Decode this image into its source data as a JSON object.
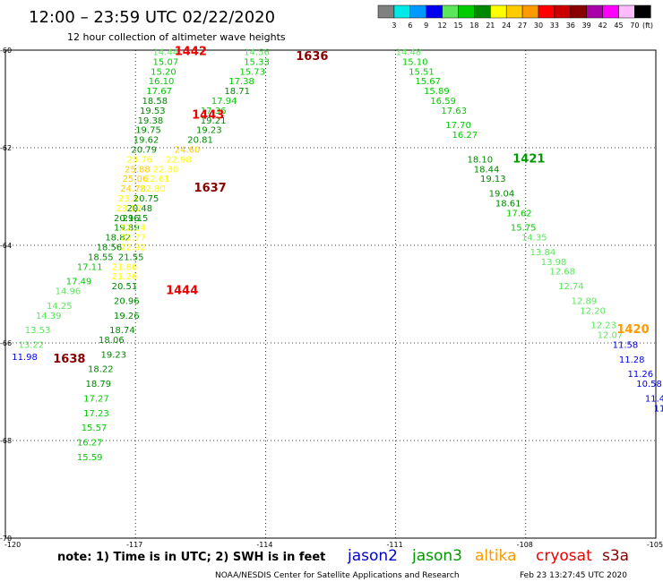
{
  "header": {
    "title": "12:00 – 23:59 UTC 02/22/2020",
    "subtitle": "12 hour collection of altimeter wave heights"
  },
  "colorbar": {
    "colors": [
      "#808080",
      "#00e8e8",
      "#0099ff",
      "#0000ee",
      "#5ce65c",
      "#00cc00",
      "#008800",
      "#ffff00",
      "#ffcc00",
      "#ff9900",
      "#ff0000",
      "#cc0000",
      "#880000",
      "#aa00aa",
      "#ff00ff",
      "#ffbbff",
      "#000000"
    ],
    "labels": [
      "3",
      "6",
      "9",
      "12",
      "15",
      "18",
      "21",
      "24",
      "27",
      "30",
      "33",
      "36",
      "39",
      "42",
      "45",
      "70"
    ],
    "unit": "(ft)"
  },
  "footer": {
    "note": "note:  1) Time is in UTC;  2) SWH is in feet",
    "credit": "NOAA/NESDIS Center for Satellite Applications and Research",
    "timestamp": "Feb 23 13:27:45 UTC 2020"
  },
  "legend": [
    {
      "name": "jason2",
      "color": "#0000cc"
    },
    {
      "name": "jason3",
      "color": "#009900"
    },
    {
      "name": "altika",
      "color": "#ff9900"
    },
    {
      "name": "cryosat",
      "color": "#ee0000"
    },
    {
      "name": "s3a",
      "color": "#880000"
    }
  ],
  "chart_data": {
    "type": "scatter",
    "title": "12:00 – 23:59 UTC 02/22/2020",
    "subtitle": "12 hour collection of altimeter wave heights",
    "xlabel": "",
    "ylabel": "",
    "xlim": [
      -120,
      -105
    ],
    "ylim": [
      -70,
      -60
    ],
    "x_ticks": [
      "-120",
      "-117",
      "-114",
      "-111",
      "-108",
      "-105"
    ],
    "y_ticks": [
      "-60",
      "-62",
      "-64",
      "-66",
      "-68",
      "-70"
    ],
    "grid": true,
    "unit": "ft",
    "series": [
      {
        "name": "cryosat",
        "time_label": "1442",
        "label_at": [
          -116.1,
          -60.1
        ],
        "points": [
          [
            -116.6,
            -60.1,
            "14.44",
            "#5ce65c"
          ],
          [
            -116.6,
            -60.3,
            "15.07",
            "#00cc00"
          ],
          [
            -116.65,
            -60.5,
            "15.20",
            "#00cc00"
          ],
          [
            -116.7,
            -60.7,
            "16.10",
            "#00cc00"
          ],
          [
            -116.75,
            -60.9,
            "17.67",
            "#00cc00"
          ],
          [
            -116.85,
            -61.1,
            "18.58",
            "#008800"
          ],
          [
            -116.9,
            -61.3,
            "19.53",
            "#008800"
          ],
          [
            -116.95,
            -61.5,
            "19.38",
            "#008800"
          ],
          [
            -117.0,
            -61.7,
            "19.75",
            "#008800"
          ],
          [
            -117.05,
            -61.9,
            "19.62",
            "#008800"
          ],
          [
            -117.1,
            -62.1,
            "20.79",
            "#008800"
          ],
          [
            -117.2,
            -62.3,
            "23.76",
            "#ffff00"
          ],
          [
            -117.25,
            -62.5,
            "25.88",
            "#ffcc00"
          ],
          [
            -117.3,
            -62.7,
            "25.06",
            "#ffcc00"
          ],
          [
            -117.35,
            -62.9,
            "24.78",
            "#ffcc00"
          ],
          [
            -117.4,
            -63.1,
            "23.3",
            "#ffff00"
          ],
          [
            -117.45,
            -63.3,
            "23.12",
            "#ffff00"
          ],
          [
            -117.5,
            -63.5,
            "20.96",
            "#008800"
          ],
          [
            -117.5,
            -63.7,
            "19.89",
            "#008800"
          ],
          [
            -117.7,
            -63.9,
            "18.82",
            "#008800"
          ],
          [
            -117.9,
            -64.1,
            "18.56",
            "#008800"
          ],
          [
            -118.1,
            -64.3,
            "18.55",
            "#008800"
          ],
          [
            -118.35,
            -64.5,
            "17.11",
            "#00cc00"
          ],
          [
            -118.6,
            -64.8,
            "17.49",
            "#00cc00"
          ],
          [
            -118.85,
            -65.0,
            "14.96",
            "#5ce65c"
          ],
          [
            -119.05,
            -65.3,
            "14.25",
            "#5ce65c"
          ],
          [
            -119.3,
            -65.5,
            "14.39",
            "#5ce65c"
          ],
          [
            -119.55,
            -65.8,
            "13.53",
            "#5ce65c"
          ],
          [
            -119.7,
            -66.1,
            "13.22",
            "#5ce65c"
          ],
          [
            -119.85,
            -66.35,
            "11.98",
            "#0000ee"
          ]
        ]
      },
      {
        "name": "s3a",
        "time_label": "1636",
        "label_at": [
          -113.3,
          -60.2
        ],
        "points": [
          [
            -114.5,
            -60.1,
            "14.56",
            "#5ce65c"
          ],
          [
            -114.5,
            -60.3,
            "15.33",
            "#00cc00"
          ],
          [
            -114.6,
            -60.5,
            "15.73",
            "#00cc00"
          ],
          [
            -114.85,
            -60.7,
            "17.38",
            "#00cc00"
          ],
          [
            -114.95,
            -60.9,
            "18.71",
            "#008800"
          ],
          [
            -115.25,
            -61.1,
            "17.94",
            "#00cc00"
          ],
          [
            -115.5,
            -61.3,
            "17.36",
            "#00cc00"
          ],
          [
            -115.5,
            -61.5,
            "19.21",
            "#008800"
          ],
          [
            -115.6,
            -61.7,
            "19.23",
            "#008800"
          ],
          [
            -115.8,
            -61.9,
            "20.81",
            "#008800"
          ],
          [
            -116.1,
            -62.1,
            "24.60",
            "#ffcc00"
          ],
          [
            -116.3,
            -62.3,
            "22.98",
            "#ffff00"
          ],
          [
            -116.6,
            -62.5,
            "22.30",
            "#ffff00"
          ],
          [
            -116.8,
            -62.7,
            "22.61",
            "#ffff00"
          ],
          [
            -116.9,
            -62.9,
            "22.80",
            "#ffff00"
          ],
          [
            -117.05,
            -63.1,
            "20.75",
            "#008800"
          ],
          [
            -117.2,
            -63.3,
            "20.48",
            "#008800"
          ],
          [
            -117.3,
            -63.5,
            "21.15",
            "#008800"
          ],
          [
            -117.35,
            -63.7,
            "22.14",
            "#ffff00"
          ],
          [
            -117.35,
            -63.9,
            "22.77",
            "#ffff00"
          ],
          [
            -117.35,
            -64.1,
            "22.92",
            "#ffff00"
          ],
          [
            -117.4,
            -64.3,
            "21.55",
            "#008800"
          ],
          [
            -117.55,
            -64.5,
            "21.86",
            "#ffff00"
          ],
          [
            -117.55,
            -64.7,
            "21.26",
            "#ffff00"
          ],
          [
            -117.55,
            -64.9,
            "20.51",
            "#008800"
          ],
          [
            -117.5,
            -65.2,
            "20.96",
            "#008800"
          ],
          [
            -117.5,
            -65.5,
            "19.26",
            "#008800"
          ],
          [
            -117.6,
            -65.8,
            "18.74",
            "#008800"
          ],
          [
            -117.85,
            -66.0,
            "18.06",
            "#008800"
          ],
          [
            -117.8,
            -66.3,
            "19.23",
            "#008800"
          ],
          [
            -118.1,
            -66.6,
            "18.22",
            "#008800"
          ],
          [
            -118.15,
            -66.9,
            "18.79",
            "#008800"
          ],
          [
            -118.2,
            -67.2,
            "17.27",
            "#00cc00"
          ],
          [
            -118.2,
            -67.5,
            "17.23",
            "#00cc00"
          ],
          [
            -118.25,
            -67.8,
            "15.57",
            "#00cc00"
          ],
          [
            -118.35,
            -68.1,
            "16.27",
            "#00cc00"
          ],
          [
            -118.35,
            -68.4,
            "15.59",
            "#00cc00"
          ]
        ]
      },
      {
        "name": "cryosat",
        "time_label": "1443",
        "label_at": [
          -115.7,
          -61.4
        ],
        "points": []
      },
      {
        "name": "s3a",
        "time_label": "1637",
        "label_at": [
          -115.65,
          -62.9
        ],
        "points": []
      },
      {
        "name": "cryosat",
        "time_label": "1444",
        "label_at": [
          -116.3,
          -65.0
        ],
        "points": []
      },
      {
        "name": "s3a",
        "time_label": "1638",
        "label_at": [
          -118.9,
          -66.4
        ],
        "points": []
      },
      {
        "name": "jason3",
        "time_label": "1421",
        "label_at": [
          -108.3,
          -62.3
        ],
        "points": [
          [
            -111.0,
            -60.1,
            "14.48",
            "#5ce65c"
          ],
          [
            -110.85,
            -60.3,
            "15.10",
            "#00cc00"
          ],
          [
            -110.7,
            -60.5,
            "15.51",
            "#00cc00"
          ],
          [
            -110.55,
            -60.7,
            "15.67",
            "#00cc00"
          ],
          [
            -110.35,
            -60.9,
            "15.89",
            "#00cc00"
          ],
          [
            -110.2,
            -61.1,
            "16.59",
            "#00cc00"
          ],
          [
            -109.95,
            -61.3,
            "17.63",
            "#00cc00"
          ],
          [
            -109.85,
            -61.6,
            "17.70",
            "#00cc00"
          ],
          [
            -109.7,
            -61.8,
            "16.27",
            "#00cc00"
          ],
          [
            -109.35,
            -62.3,
            "18.10",
            "#008800"
          ],
          [
            -109.2,
            -62.5,
            "18.44",
            "#008800"
          ],
          [
            -109.05,
            -62.7,
            "19.13",
            "#008800"
          ],
          [
            -108.85,
            -63.0,
            "19.04",
            "#008800"
          ],
          [
            -108.7,
            -63.2,
            "18.61",
            "#008800"
          ],
          [
            -108.45,
            -63.4,
            "17.62",
            "#00cc00"
          ],
          [
            -108.35,
            -63.7,
            "15.75",
            "#00cc00"
          ],
          [
            -108.1,
            -63.9,
            "14.35",
            "#5ce65c"
          ],
          [
            -107.9,
            -64.2,
            "13.84",
            "#5ce65c"
          ],
          [
            -107.65,
            -64.4,
            "13.98",
            "#5ce65c"
          ],
          [
            -107.45,
            -64.6,
            "12.68",
            "#5ce65c"
          ],
          [
            -107.25,
            -64.9,
            "12.74",
            "#5ce65c"
          ],
          [
            -106.95,
            -65.2,
            "12.89",
            "#5ce65c"
          ],
          [
            -106.75,
            -65.4,
            "12.20",
            "#5ce65c"
          ],
          [
            -106.5,
            -65.7,
            "12.23",
            "#5ce65c"
          ],
          [
            -106.35,
            -65.9,
            "12.07",
            "#5ce65c"
          ],
          [
            -106.0,
            -66.1,
            "11.58",
            "#0000ee"
          ],
          [
            -105.85,
            -66.4,
            "11.28",
            "#0000ee"
          ],
          [
            -105.65,
            -66.7,
            "11.26",
            "#0000ee"
          ],
          [
            -105.45,
            -66.9,
            "10.58",
            "#0000ee"
          ],
          [
            -105.25,
            -67.2,
            "11.4",
            "#0000ee"
          ],
          [
            -105.05,
            -67.4,
            "11",
            "#0000ee"
          ]
        ]
      },
      {
        "name": "altika",
        "time_label": "1420",
        "label_at": [
          -105.9,
          -65.8
        ],
        "points": []
      }
    ]
  }
}
